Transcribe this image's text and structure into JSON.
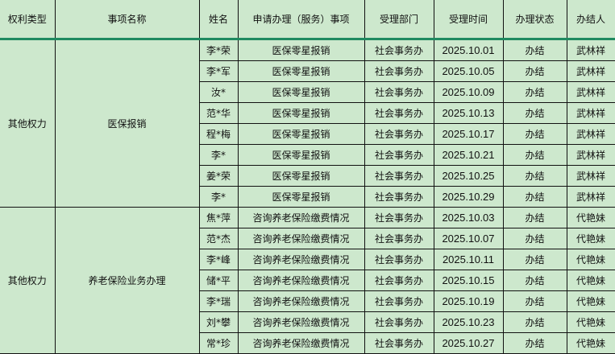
{
  "headers": [
    "权利类型",
    "事项名称",
    "姓名",
    "申请办理（服务）事项",
    "受理部门",
    "受理时间",
    "办理状态",
    "办结人"
  ],
  "groups": [
    {
      "right_type": "其他权力",
      "item_name": "医保报销",
      "rows": [
        {
          "name": "李*荣",
          "service": "医保零星报销",
          "dept": "社会事务办",
          "date": "2025.10.01",
          "status": "办结",
          "handler": "武林祥"
        },
        {
          "name": "李*军",
          "service": "医保零星报销",
          "dept": "社会事务办",
          "date": "2025.10.05",
          "status": "办结",
          "handler": "武林祥"
        },
        {
          "name": "汝*",
          "service": "医保零星报销",
          "dept": "社会事务办",
          "date": "2025.10.09",
          "status": "办结",
          "handler": "武林祥"
        },
        {
          "name": "范*华",
          "service": "医保零星报销",
          "dept": "社会事务办",
          "date": "2025.10.13",
          "status": "办结",
          "handler": "武林祥"
        },
        {
          "name": "程*梅",
          "service": "医保零星报销",
          "dept": "社会事务办",
          "date": "2025.10.17",
          "status": "办结",
          "handler": "武林祥"
        },
        {
          "name": "李*",
          "service": "医保零星报销",
          "dept": "社会事务办",
          "date": "2025.10.21",
          "status": "办结",
          "handler": "武林祥"
        },
        {
          "name": "姜*荣",
          "service": "医保零星报销",
          "dept": "社会事务办",
          "date": "2025.10.25",
          "status": "办结",
          "handler": "武林祥"
        },
        {
          "name": "李*",
          "service": "医保零星报销",
          "dept": "社会事务办",
          "date": "2025.10.29",
          "status": "办结",
          "handler": "武林祥"
        }
      ]
    },
    {
      "right_type": "其他权力",
      "item_name": "养老保险业务办理",
      "rows": [
        {
          "name": "焦*萍",
          "service": "咨询养老保险缴费情况",
          "dept": "社会事务办",
          "date": "2025.10.03",
          "status": "办结",
          "handler": "代艳妹"
        },
        {
          "name": "范*杰",
          "service": "咨询养老保险缴费情况",
          "dept": "社会事务办",
          "date": "2025.10.07",
          "status": "办结",
          "handler": "代艳妹"
        },
        {
          "name": "李*峰",
          "service": "咨询养老保险缴费情况",
          "dept": "社会事务办",
          "date": "2025.10.11",
          "status": "办结",
          "handler": "代艳妹"
        },
        {
          "name": "储*平",
          "service": "咨询养老保险缴费情况",
          "dept": "社会事务办",
          "date": "2025.10.15",
          "status": "办结",
          "handler": "代艳妹"
        },
        {
          "name": "李*瑞",
          "service": "咨询养老保险缴费情况",
          "dept": "社会事务办",
          "date": "2025.10.19",
          "status": "办结",
          "handler": "代艳妹"
        },
        {
          "name": "刘*攀",
          "service": "咨询养老保险缴费情况",
          "dept": "社会事务办",
          "date": "2025.10.23",
          "status": "办结",
          "handler": "代艳妹"
        },
        {
          "name": "常*珍",
          "service": "咨询养老保险缴费情况",
          "dept": "社会事务办",
          "date": "2025.10.27",
          "status": "办结",
          "handler": "代艳妹"
        }
      ]
    }
  ]
}
